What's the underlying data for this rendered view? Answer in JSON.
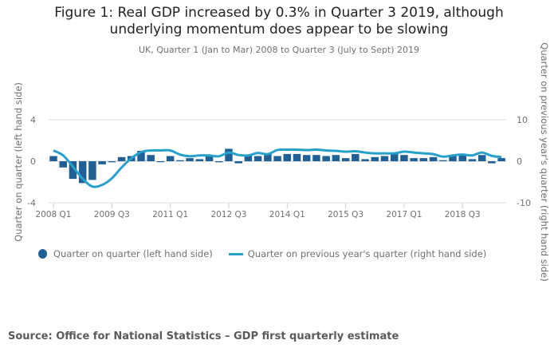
{
  "title_line1": "Figure 1: Real GDP increased by 0.3% in Quarter 3 2019, although",
  "title_line2": "underlying momentum does appear to be slowing",
  "subtitle": "UK, Quarter 1 (Jan to Mar) 2008 to Quarter 3 (July to Sept) 2019",
  "source": "Source: Office for National Statistics – GDP first quarterly estimate",
  "colors": {
    "bar": "#206095",
    "line": "#27a0cc",
    "grid": "#dddddd",
    "text": "#707070"
  },
  "chart_data": {
    "type": "bar+line",
    "title": "Figure 1: Real GDP increased by 0.3% in Quarter 3 2019, although underlying momentum does appear to be slowing",
    "subtitle": "UK, Quarter 1 (Jan to Mar) 2008 to Quarter 3 (July to Sept) 2019",
    "ylabel_left": "Quarter on quarter (left hand side)",
    "ylabel_right": "Quarter on previous year's quarter (right hand side)",
    "ylim_left": [
      -4,
      4
    ],
    "ylim_right": [
      -10,
      10
    ],
    "yticks_left": [
      "4",
      "0",
      "-4"
    ],
    "yticks_left_values": [
      4,
      0,
      -4
    ],
    "yticks_right": [
      "10",
      "0",
      "-10"
    ],
    "yticks_right_values": [
      10,
      0,
      -10
    ],
    "grid": true,
    "legend_position": "bottom",
    "xtick_labels": [
      "2008 Q1",
      "2009 Q3",
      "2011 Q1",
      "2012 Q3",
      "2014 Q1",
      "2015 Q3",
      "2017 Q1",
      "2018 Q3"
    ],
    "xtick_indices": [
      0,
      6,
      12,
      18,
      24,
      30,
      36,
      42
    ],
    "categories": [
      "2008 Q1",
      "2008 Q2",
      "2008 Q3",
      "2008 Q4",
      "2009 Q1",
      "2009 Q2",
      "2009 Q3",
      "2009 Q4",
      "2010 Q1",
      "2010 Q2",
      "2010 Q3",
      "2010 Q4",
      "2011 Q1",
      "2011 Q2",
      "2011 Q3",
      "2011 Q4",
      "2012 Q1",
      "2012 Q2",
      "2012 Q3",
      "2012 Q4",
      "2013 Q1",
      "2013 Q2",
      "2013 Q3",
      "2013 Q4",
      "2014 Q1",
      "2014 Q2",
      "2014 Q3",
      "2014 Q4",
      "2015 Q1",
      "2015 Q2",
      "2015 Q3",
      "2015 Q4",
      "2016 Q1",
      "2016 Q2",
      "2016 Q3",
      "2016 Q4",
      "2017 Q1",
      "2017 Q2",
      "2017 Q3",
      "2017 Q4",
      "2018 Q1",
      "2018 Q2",
      "2018 Q3",
      "2018 Q4",
      "2019 Q1",
      "2019 Q2",
      "2019 Q3"
    ],
    "series": [
      {
        "name": "Quarter on quarter (left hand side)",
        "type": "bar",
        "axis": "left",
        "values": [
          0.5,
          -0.6,
          -1.7,
          -2.1,
          -1.8,
          -0.3,
          -0.1,
          0.4,
          0.5,
          1.0,
          0.6,
          0.0,
          0.5,
          0.1,
          0.3,
          0.2,
          0.5,
          -0.1,
          1.2,
          -0.2,
          0.6,
          0.5,
          0.7,
          0.5,
          0.7,
          0.7,
          0.6,
          0.6,
          0.5,
          0.6,
          0.3,
          0.7,
          0.2,
          0.4,
          0.5,
          0.7,
          0.6,
          0.3,
          0.3,
          0.4,
          0.1,
          0.5,
          0.6,
          0.2,
          0.6,
          -0.2,
          0.3
        ]
      },
      {
        "name": "Quarter on previous year's quarter (right hand side)",
        "type": "line",
        "axis": "right",
        "values": [
          2.6,
          1.4,
          -1.3,
          -4.2,
          -6.1,
          -5.7,
          -4.1,
          -1.5,
          0.7,
          2.2,
          2.6,
          2.6,
          2.6,
          1.6,
          1.2,
          1.4,
          1.4,
          1.2,
          2.1,
          1.5,
          1.4,
          2.0,
          1.7,
          2.7,
          2.8,
          2.8,
          2.7,
          2.8,
          2.6,
          2.5,
          2.3,
          2.4,
          2.1,
          1.9,
          1.9,
          1.9,
          2.3,
          2.1,
          1.9,
          1.7,
          1.1,
          1.4,
          1.6,
          1.4,
          2.1,
          1.3,
          1.0
        ]
      }
    ]
  }
}
